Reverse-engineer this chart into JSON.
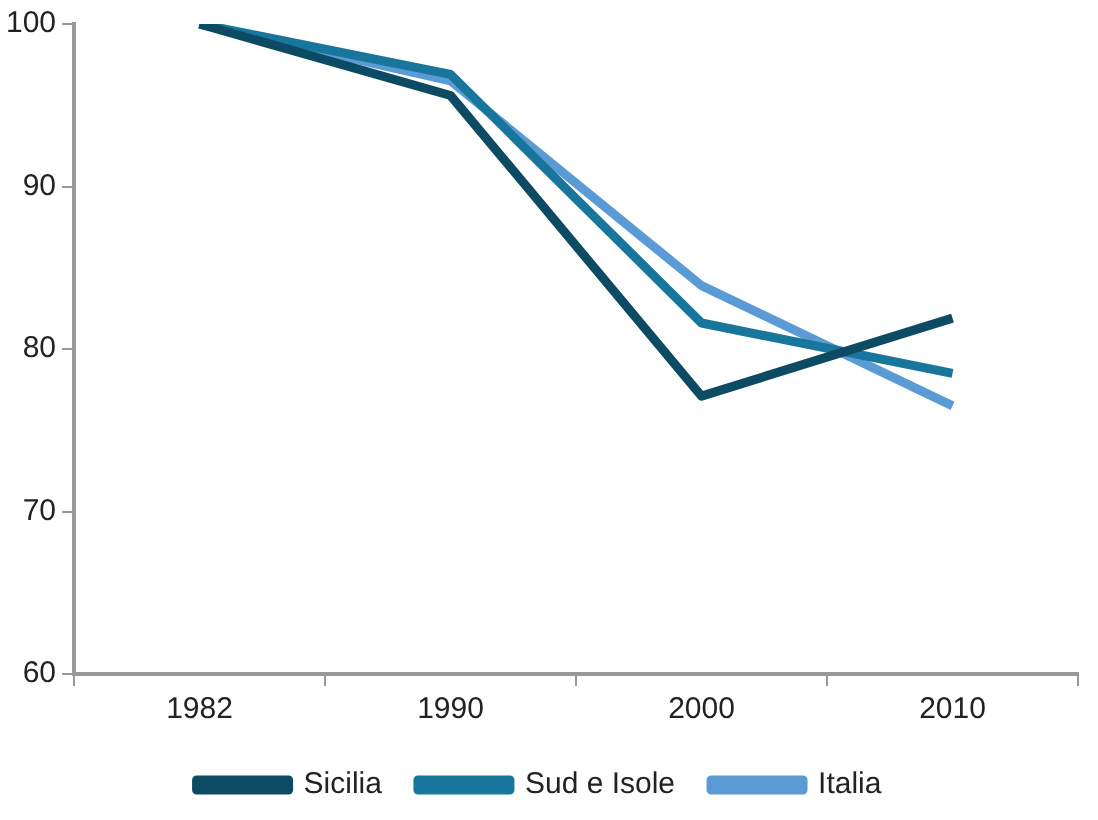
{
  "chart_data": {
    "type": "line",
    "categories": [
      "1982",
      "1990",
      "2000",
      "2010"
    ],
    "series": [
      {
        "name": "Sicilia",
        "color": "#0d4a63",
        "values": [
          100,
          95.6,
          77.1,
          81.9
        ]
      },
      {
        "name": "Sud e Isole",
        "color": "#18759b",
        "values": [
          100,
          96.9,
          81.6,
          78.5
        ]
      },
      {
        "name": "Italia",
        "color": "#5b9bd5",
        "values": [
          100,
          96.5,
          83.9,
          76.5
        ]
      }
    ],
    "ylim": [
      60,
      100
    ],
    "yticks": [
      60,
      70,
      80,
      90,
      100
    ],
    "grid": false,
    "legend": "bottom",
    "marker": "none",
    "line_style": "solid"
  }
}
